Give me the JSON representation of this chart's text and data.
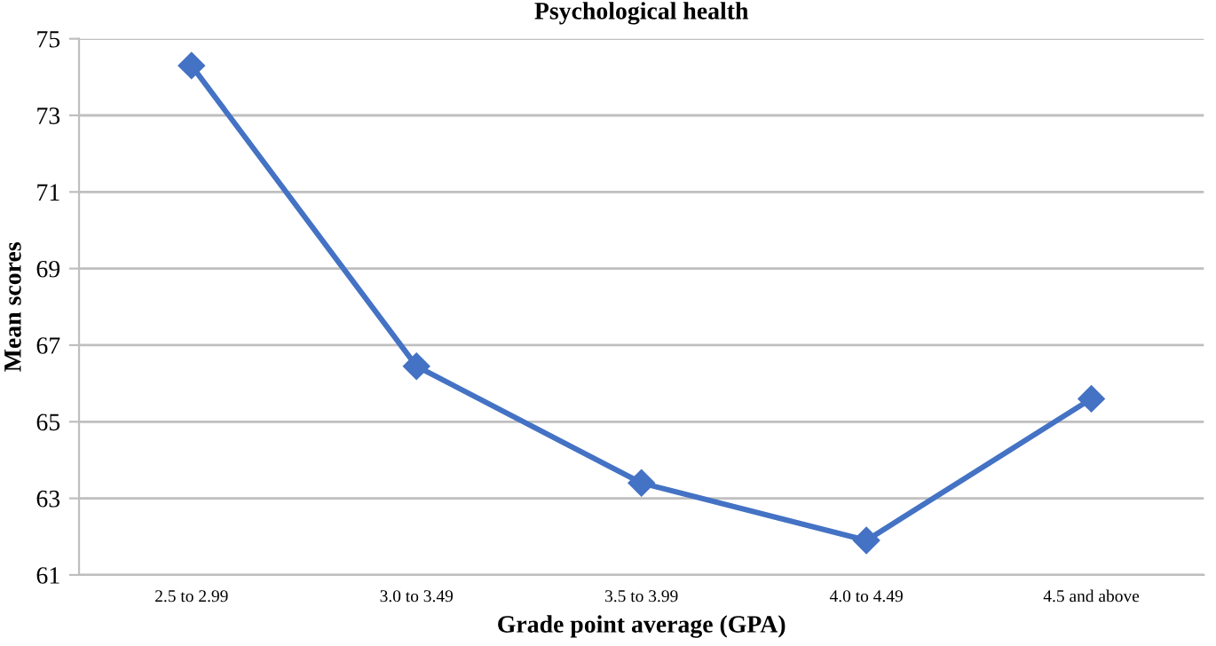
{
  "chart_data": {
    "type": "line",
    "title": "Psychological health",
    "xlabel": "Grade point average (GPA)",
    "ylabel": "Mean scores",
    "categories": [
      "2.5 to 2.99",
      "3.0 to 3.49",
      "3.5 to 3.99",
      "4.0 to 4.49",
      "4.5 and above"
    ],
    "series": [
      {
        "color": "#4472c4",
        "values": [
          74.3,
          66.45,
          63.4,
          61.9,
          65.6
        ]
      }
    ],
    "ylim": [
      61,
      75
    ],
    "yticks": [
      61,
      63,
      65,
      67,
      69,
      71,
      73,
      75
    ],
    "grid": "y",
    "marker": "diamond",
    "line_style": "solid"
  }
}
